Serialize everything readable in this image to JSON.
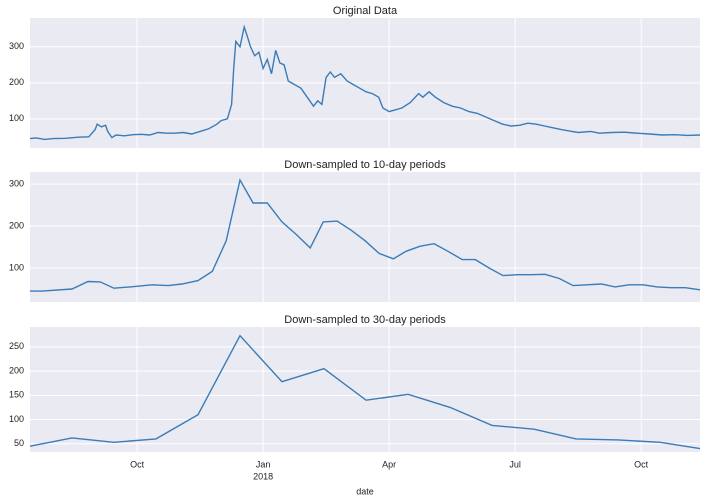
{
  "chart_data": [
    {
      "type": "line",
      "title": "Original Data",
      "color": "#3a7cb8",
      "grid": true,
      "xlim": [
        7.45,
        23.4
      ],
      "xticks": [
        10,
        13,
        16,
        19,
        22
      ],
      "ylim": [
        19,
        380
      ],
      "yticks": [
        100,
        200,
        300
      ],
      "x": [
        7.45,
        7.6,
        7.8,
        8.0,
        8.3,
        8.6,
        8.85,
        9.0,
        9.05,
        9.15,
        9.25,
        9.3,
        9.4,
        9.5,
        9.7,
        9.9,
        10.1,
        10.3,
        10.5,
        10.7,
        10.9,
        11.1,
        11.3,
        11.5,
        11.7,
        11.9,
        12.0,
        12.15,
        12.25,
        12.3,
        12.35,
        12.45,
        12.55,
        12.62,
        12.7,
        12.8,
        12.9,
        13.0,
        13.1,
        13.2,
        13.3,
        13.4,
        13.5,
        13.6,
        13.75,
        13.9,
        14.05,
        14.2,
        14.3,
        14.4,
        14.5,
        14.6,
        14.7,
        14.85,
        15.0,
        15.15,
        15.3,
        15.45,
        15.6,
        15.75,
        15.85,
        16.0,
        16.15,
        16.3,
        16.5,
        16.7,
        16.8,
        16.95,
        17.1,
        17.3,
        17.5,
        17.7,
        17.9,
        18.1,
        18.3,
        18.5,
        18.7,
        18.9,
        19.1,
        19.3,
        19.5,
        19.7,
        19.9,
        20.1,
        20.3,
        20.5,
        20.8,
        21.0,
        21.3,
        21.6,
        21.9,
        22.2,
        22.5,
        22.8,
        23.1,
        23.4
      ],
      "values": [
        45,
        47,
        43,
        45,
        46,
        49,
        50,
        70,
        85,
        78,
        82,
        65,
        48,
        55,
        53,
        56,
        57,
        55,
        62,
        60,
        60,
        62,
        58,
        65,
        72,
        85,
        95,
        100,
        140,
        240,
        315,
        300,
        355,
        330,
        300,
        275,
        285,
        240,
        265,
        225,
        290,
        255,
        250,
        205,
        195,
        185,
        160,
        135,
        150,
        140,
        215,
        230,
        215,
        225,
        205,
        195,
        185,
        175,
        170,
        160,
        130,
        120,
        125,
        130,
        145,
        170,
        160,
        175,
        160,
        145,
        135,
        130,
        120,
        115,
        105,
        95,
        85,
        80,
        82,
        88,
        85,
        80,
        75,
        70,
        66,
        62,
        65,
        60,
        62,
        63,
        60,
        58,
        55,
        56,
        54,
        55
      ]
    },
    {
      "type": "line",
      "title": "Down-sampled to 10-day periods",
      "color": "#3a7cb8",
      "grid": true,
      "xlim": [
        7.45,
        23.4
      ],
      "xticks": [
        10,
        13,
        16,
        19,
        22
      ],
      "ylim": [
        19,
        329
      ],
      "yticks": [
        100,
        200,
        300
      ],
      "x": [
        7.45,
        7.74,
        8.45,
        8.83,
        9.12,
        9.45,
        9.83,
        10.36,
        10.74,
        11.07,
        11.45,
        11.79,
        12.12,
        12.45,
        12.76,
        13.1,
        13.45,
        13.79,
        14.12,
        14.43,
        14.76,
        15.1,
        15.43,
        15.76,
        16.1,
        16.4,
        16.74,
        17.07,
        17.4,
        17.74,
        18.05,
        18.38,
        18.71,
        19.05,
        19.38,
        19.71,
        20.05,
        20.38,
        20.71,
        21.05,
        21.38,
        21.71,
        22.05,
        22.38,
        22.71,
        23.05,
        23.4
      ],
      "values": [
        45,
        45,
        50,
        68,
        67,
        52,
        55,
        60,
        58,
        62,
        70,
        92,
        165,
        310,
        255,
        255,
        210,
        180,
        148,
        210,
        212,
        190,
        165,
        135,
        122,
        140,
        152,
        158,
        140,
        120,
        120,
        100,
        82,
        84,
        84,
        85,
        75,
        58,
        60,
        62,
        55,
        60,
        60,
        55,
        53,
        53,
        48
      ]
    },
    {
      "type": "line",
      "title": "Down-sampled to 30-day periods",
      "color": "#3a7cb8",
      "grid": true,
      "xlabel": "date",
      "xlim": [
        7.45,
        23.4
      ],
      "xticks": [
        {
          "value": 10,
          "label": "Oct"
        },
        {
          "value": 13,
          "label": "Jan",
          "sublabel": "2018"
        },
        {
          "value": 16,
          "label": "Apr"
        },
        {
          "value": 19,
          "label": "Jul"
        },
        {
          "value": 22,
          "label": "Oct"
        }
      ],
      "ylim": [
        33,
        291
      ],
      "yticks": [
        50,
        100,
        150,
        200,
        250
      ],
      "x": [
        7.45,
        8.45,
        9.45,
        10.45,
        11.45,
        12.45,
        13.45,
        14.45,
        15.45,
        16.45,
        17.45,
        18.45,
        19.45,
        20.45,
        21.45,
        22.45,
        23.4
      ],
      "values": [
        45,
        62,
        53,
        60,
        110,
        273,
        178,
        205,
        140,
        152,
        125,
        88,
        80,
        60,
        58,
        53,
        40
      ]
    }
  ]
}
